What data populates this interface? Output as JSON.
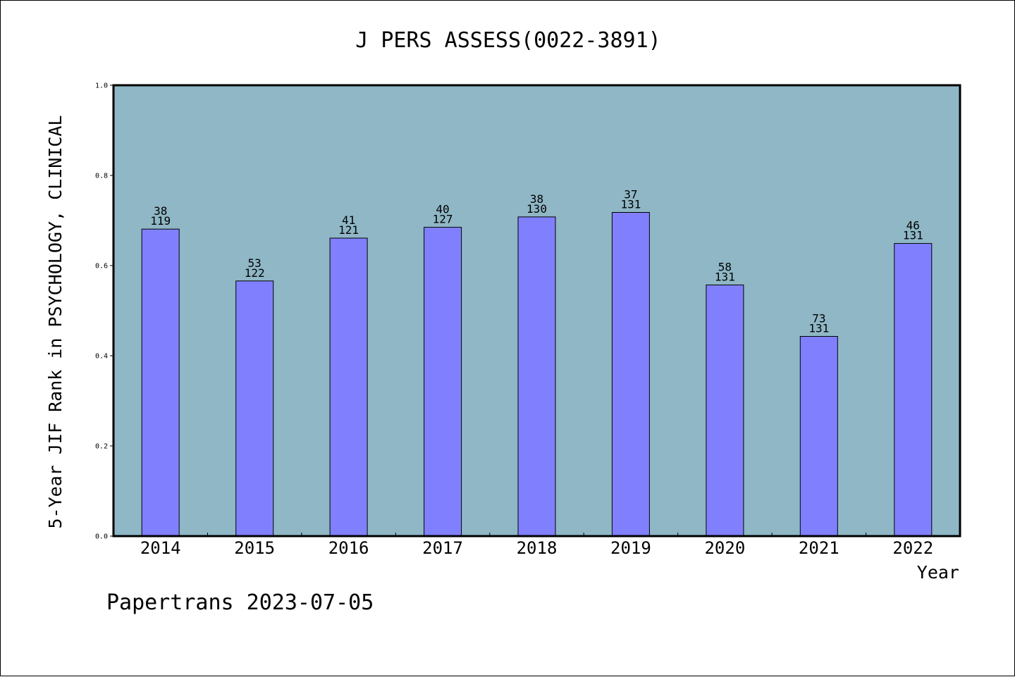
{
  "chart_data": {
    "type": "bar",
    "title": "J PERS ASSESS(0022-3891)",
    "xlabel": "Year",
    "ylabel": "5-Year JIF Rank in PSYCHOLOGY, CLINICAL",
    "ylim": [
      0,
      1.0
    ],
    "yticks": [
      "0.0",
      "0.2",
      "0.4",
      "0.6",
      "0.8",
      "1.0"
    ],
    "categories": [
      "2014",
      "2015",
      "2016",
      "2017",
      "2018",
      "2019",
      "2020",
      "2021",
      "2022"
    ],
    "values": [
      0.681,
      0.566,
      0.661,
      0.685,
      0.708,
      0.718,
      0.557,
      0.443,
      0.649
    ],
    "rank": [
      "38",
      "53",
      "41",
      "40",
      "38",
      "37",
      "58",
      "73",
      "46"
    ],
    "total": [
      "119",
      "122",
      "121",
      "127",
      "130",
      "131",
      "131",
      "131",
      "131"
    ],
    "grid": false,
    "legend": "none",
    "colors": {
      "plot_bg": "#8fb7c6",
      "bar_fill": "#8080ff",
      "bar_stroke": "#000000"
    }
  },
  "footer": "Papertrans 2023-07-05"
}
